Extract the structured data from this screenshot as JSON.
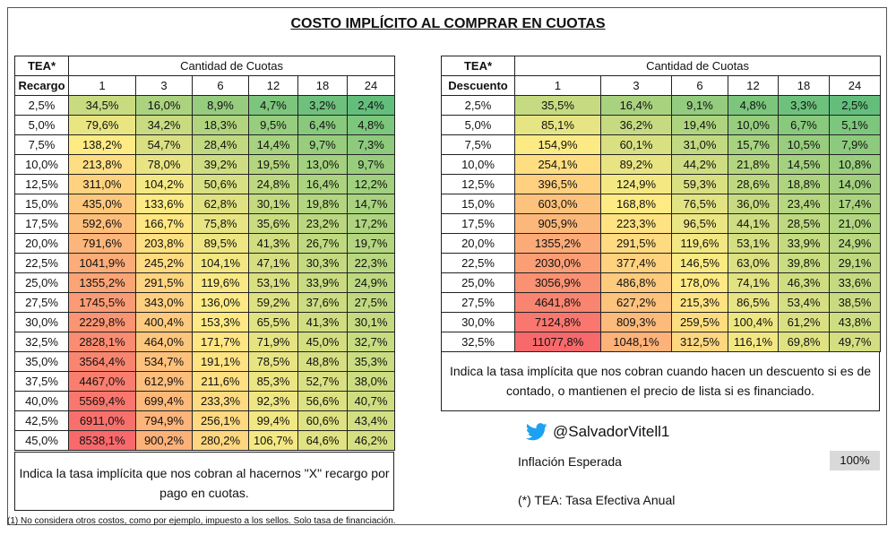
{
  "title": "COSTO IMPLÍCITO AL COMPRAR EN CUOTAS",
  "left_table": {
    "tea_label": "TEA*",
    "group_header": "Cantidad de Cuotas",
    "row_header": "Recargo",
    "cuotas": [
      "1",
      "3",
      "6",
      "12",
      "18",
      "24"
    ],
    "rows": [
      {
        "rate": "2,5%",
        "values": [
          "34,5%",
          "16,0%",
          "8,9%",
          "4,7%",
          "3,2%",
          "2,4%"
        ]
      },
      {
        "rate": "5,0%",
        "values": [
          "79,6%",
          "34,2%",
          "18,3%",
          "9,5%",
          "6,4%",
          "4,8%"
        ]
      },
      {
        "rate": "7,5%",
        "values": [
          "138,2%",
          "54,7%",
          "28,4%",
          "14,4%",
          "9,7%",
          "7,3%"
        ]
      },
      {
        "rate": "10,0%",
        "values": [
          "213,8%",
          "78,0%",
          "39,2%",
          "19,5%",
          "13,0%",
          "9,7%"
        ]
      },
      {
        "rate": "12,5%",
        "values": [
          "311,0%",
          "104,2%",
          "50,6%",
          "24,8%",
          "16,4%",
          "12,2%"
        ]
      },
      {
        "rate": "15,0%",
        "values": [
          "435,0%",
          "133,6%",
          "62,8%",
          "30,1%",
          "19,8%",
          "14,7%"
        ]
      },
      {
        "rate": "17,5%",
        "values": [
          "592,6%",
          "166,7%",
          "75,8%",
          "35,6%",
          "23,2%",
          "17,2%"
        ]
      },
      {
        "rate": "20,0%",
        "values": [
          "791,6%",
          "203,8%",
          "89,5%",
          "41,3%",
          "26,7%",
          "19,7%"
        ]
      },
      {
        "rate": "22,5%",
        "values": [
          "1041,9%",
          "245,2%",
          "104,1%",
          "47,1%",
          "30,3%",
          "22,3%"
        ]
      },
      {
        "rate": "25,0%",
        "values": [
          "1355,2%",
          "291,5%",
          "119,6%",
          "53,1%",
          "33,9%",
          "24,9%"
        ]
      },
      {
        "rate": "27,5%",
        "values": [
          "1745,5%",
          "343,0%",
          "136,0%",
          "59,2%",
          "37,6%",
          "27,5%"
        ]
      },
      {
        "rate": "30,0%",
        "values": [
          "2229,8%",
          "400,4%",
          "153,3%",
          "65,5%",
          "41,3%",
          "30,1%"
        ]
      },
      {
        "rate": "32,5%",
        "values": [
          "2828,1%",
          "464,0%",
          "171,7%",
          "71,9%",
          "45,0%",
          "32,7%"
        ]
      },
      {
        "rate": "35,0%",
        "values": [
          "3564,4%",
          "534,7%",
          "191,1%",
          "78,5%",
          "48,8%",
          "35,3%"
        ]
      },
      {
        "rate": "37,5%",
        "values": [
          "4467,0%",
          "612,9%",
          "211,6%",
          "85,3%",
          "52,7%",
          "38,0%"
        ]
      },
      {
        "rate": "40,0%",
        "values": [
          "5569,4%",
          "699,4%",
          "233,3%",
          "92,3%",
          "56,6%",
          "40,7%"
        ]
      },
      {
        "rate": "42,5%",
        "values": [
          "6911,0%",
          "794,9%",
          "256,1%",
          "99,4%",
          "60,6%",
          "43,4%"
        ]
      },
      {
        "rate": "45,0%",
        "values": [
          "8538,1%",
          "900,2%",
          "280,2%",
          "106,7%",
          "64,6%",
          "46,2%"
        ]
      }
    ],
    "note": "Indica la tasa implícita que nos cobran al hacernos \"X\" recargo por pago en cuotas."
  },
  "right_table": {
    "tea_label": "TEA*",
    "group_header": "Cantidad de Cuotas",
    "row_header": "Descuento",
    "cuotas": [
      "1",
      "3",
      "6",
      "12",
      "18",
      "24"
    ],
    "rows": [
      {
        "rate": "2,5%",
        "values": [
          "35,5%",
          "16,4%",
          "9,1%",
          "4,8%",
          "3,3%",
          "2,5%"
        ]
      },
      {
        "rate": "5,0%",
        "values": [
          "85,1%",
          "36,2%",
          "19,4%",
          "10,0%",
          "6,7%",
          "5,1%"
        ]
      },
      {
        "rate": "7,5%",
        "values": [
          "154,9%",
          "60,1%",
          "31,0%",
          "15,7%",
          "10,5%",
          "7,9%"
        ]
      },
      {
        "rate": "10,0%",
        "values": [
          "254,1%",
          "89,2%",
          "44,2%",
          "21,8%",
          "14,5%",
          "10,8%"
        ]
      },
      {
        "rate": "12,5%",
        "values": [
          "396,5%",
          "124,9%",
          "59,3%",
          "28,6%",
          "18,8%",
          "14,0%"
        ]
      },
      {
        "rate": "15,0%",
        "values": [
          "603,0%",
          "168,8%",
          "76,5%",
          "36,0%",
          "23,4%",
          "17,4%"
        ]
      },
      {
        "rate": "17,5%",
        "values": [
          "905,9%",
          "223,3%",
          "96,5%",
          "44,1%",
          "28,5%",
          "21,0%"
        ]
      },
      {
        "rate": "20,0%",
        "values": [
          "1355,2%",
          "291,5%",
          "119,6%",
          "53,1%",
          "33,9%",
          "24,9%"
        ]
      },
      {
        "rate": "22,5%",
        "values": [
          "2030,0%",
          "377,4%",
          "146,5%",
          "63,0%",
          "39,8%",
          "29,1%"
        ]
      },
      {
        "rate": "25,0%",
        "values": [
          "3056,9%",
          "486,8%",
          "178,0%",
          "74,1%",
          "46,3%",
          "33,6%"
        ]
      },
      {
        "rate": "27,5%",
        "values": [
          "4641,8%",
          "627,2%",
          "215,3%",
          "86,5%",
          "53,4%",
          "38,5%"
        ]
      },
      {
        "rate": "30,0%",
        "values": [
          "7124,8%",
          "809,3%",
          "259,5%",
          "100,4%",
          "61,2%",
          "43,8%"
        ]
      },
      {
        "rate": "32,5%",
        "values": [
          "11077,8%",
          "1048,1%",
          "312,5%",
          "116,1%",
          "69,8%",
          "49,7%"
        ]
      }
    ],
    "note": "Indica la tasa implícita que nos cobran cuando hacen un descuento si es de contado, o mantienen el precio de lista si es financiado."
  },
  "twitter_handle": "@SalvadorVitell1",
  "inflation": {
    "label": "Inflación Esperada",
    "value": "100%"
  },
  "tea_definition": "(*) TEA: Tasa Efectiva Anual",
  "footnote": "(1) No considera otros costos, como por ejemplo, impuesto a los sellos. Solo tasa de financiación.",
  "colors": {
    "green": "#63be7b",
    "yellow": "#ffeb84",
    "red": "#f8696b",
    "twitter": "#1da1f2"
  }
}
